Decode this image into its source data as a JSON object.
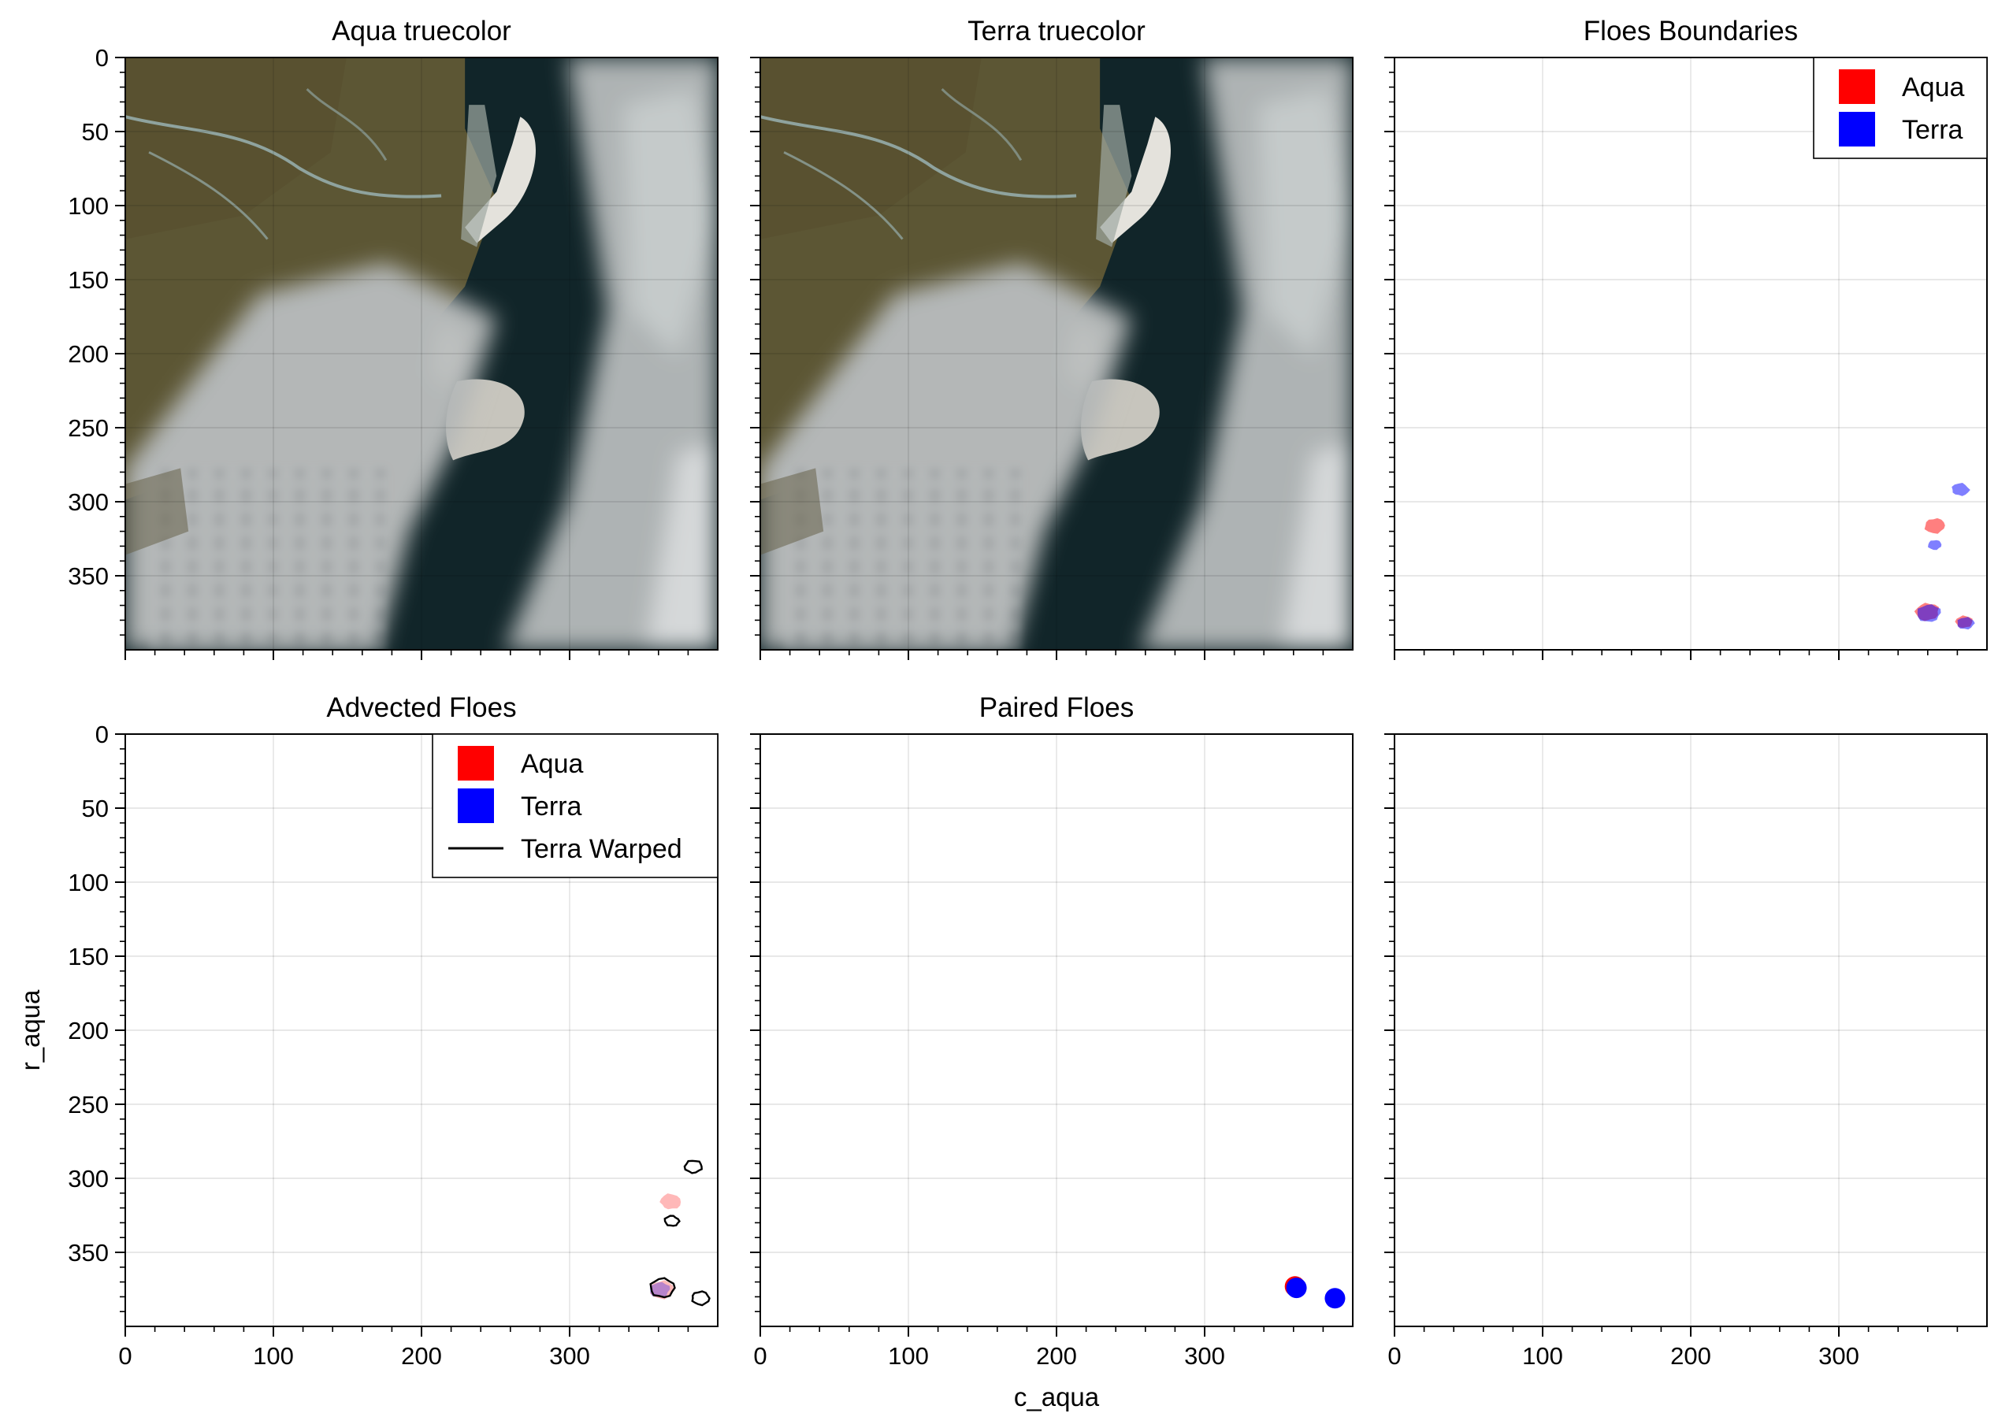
{
  "figure": {
    "x_label": "c_aqua",
    "y_label": "r_aqua",
    "x_ticks": [
      0,
      100,
      200,
      300
    ],
    "y_ticks": [
      0,
      50,
      100,
      150,
      200,
      250,
      300,
      350
    ],
    "x_range": [
      0,
      400
    ],
    "y_range": [
      0,
      400
    ],
    "y_inverted": true,
    "grid": true
  },
  "legend_floes": {
    "placement": "top-right",
    "entries": [
      {
        "label": "Aqua",
        "color": "#ff0000",
        "kind": "patch"
      },
      {
        "label": "Terra",
        "color": "#0000ff",
        "kind": "patch"
      }
    ]
  },
  "legend_advected": {
    "placement": "top-right",
    "entries": [
      {
        "label": "Aqua",
        "color": "#ff0000",
        "kind": "patch"
      },
      {
        "label": "Terra",
        "color": "#0000ff",
        "kind": "patch"
      },
      {
        "label": "Terra Warped",
        "color": "#000000",
        "kind": "line"
      }
    ]
  },
  "panels": [
    {
      "id": "aqua-truecolor",
      "title": "Aqua truecolor",
      "kind": "image"
    },
    {
      "id": "terra-truecolor",
      "title": "Terra truecolor",
      "kind": "image"
    },
    {
      "id": "floes-boundaries",
      "title": "Floes Boundaries",
      "kind": "floes"
    },
    {
      "id": "advected-floes",
      "title": "Advected Floes",
      "kind": "advected"
    },
    {
      "id": "paired-floes",
      "title": "Paired Floes",
      "kind": "paired"
    },
    {
      "id": "empty-panel",
      "title": "",
      "kind": "empty"
    }
  ],
  "chart_data": [
    {
      "panel": "Floes Boundaries",
      "type": "scatter",
      "title": "Floes Boundaries",
      "xlim": [
        0,
        400
      ],
      "ylim": [
        400,
        0
      ],
      "series": [
        {
          "name": "Aqua",
          "color": "#ff0000",
          "points": [
            {
              "x": 365,
              "y": 316
            },
            {
              "x": 360,
              "y": 374
            },
            {
              "x": 385,
              "y": 381
            }
          ]
        },
        {
          "name": "Terra",
          "color": "#0000ff",
          "points": [
            {
              "x": 382,
              "y": 292
            },
            {
              "x": 365,
              "y": 329
            },
            {
              "x": 361,
              "y": 375
            },
            {
              "x": 386,
              "y": 382
            }
          ]
        }
      ]
    },
    {
      "panel": "Advected Floes",
      "type": "scatter",
      "title": "Advected Floes",
      "xlim": [
        0,
        400
      ],
      "ylim": [
        400,
        0
      ],
      "series": [
        {
          "name": "Aqua",
          "color": "#ff0000",
          "points": [
            {
              "x": 368,
              "y": 316
            },
            {
              "x": 362,
              "y": 375
            }
          ]
        },
        {
          "name": "Terra",
          "color": "#0000ff",
          "points": [
            {
              "x": 361,
              "y": 375
            }
          ]
        },
        {
          "name": "Terra Warped",
          "color": "#000000",
          "points": [
            {
              "x": 384,
              "y": 292
            },
            {
              "x": 369,
              "y": 329
            },
            {
              "x": 362,
              "y": 374
            },
            {
              "x": 388,
              "y": 381
            }
          ]
        }
      ]
    },
    {
      "panel": "Paired Floes",
      "type": "scatter",
      "title": "Paired Floes",
      "xlim": [
        0,
        400
      ],
      "ylim": [
        400,
        0
      ],
      "series": [
        {
          "name": "Aqua",
          "color": "#ff0000",
          "points": [
            {
              "x": 361,
              "y": 373
            }
          ]
        },
        {
          "name": "Terra",
          "color": "#0000ff",
          "points": [
            {
              "x": 362,
              "y": 374
            },
            {
              "x": 388,
              "y": 381
            }
          ]
        }
      ]
    }
  ]
}
